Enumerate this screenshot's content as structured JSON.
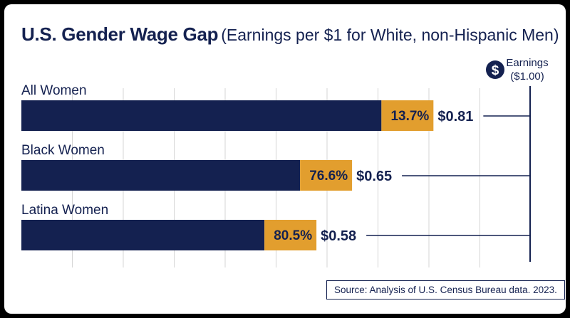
{
  "title": "U.S. Gender Wage Gap",
  "subtitle": "(Earnings per $1 for White, non-Hispanic Men)",
  "legend": {
    "icon": "dollar-icon",
    "symbol": "$",
    "line1": "Earnings",
    "line2": "($1.00)"
  },
  "source": "Source: Analysis of U.S. Census Bureau data. 2023.",
  "colors": {
    "navy": "#142150",
    "gold": "#E29E2E",
    "grid": "#D4D4D4"
  },
  "chart_data": {
    "type": "bar",
    "orientation": "horizontal",
    "title": "U.S. Gender Wage Gap",
    "subtitle": "(Earnings per $1 for White, non-Hispanic Men)",
    "categories": [
      "All Women",
      "Black Women",
      "Latina Women"
    ],
    "earnings": [
      0.81,
      0.65,
      0.58
    ],
    "value_labels": [
      "$0.81",
      "$0.65",
      "$0.58"
    ],
    "gap_labels": [
      "13.7%",
      "76.6%",
      "80.5%"
    ],
    "reference_value": 1.0,
    "reference_label": "Earnings ($1.00)",
    "xlim": [
      0,
      1
    ],
    "grid": true,
    "legend_position": "top-right"
  }
}
